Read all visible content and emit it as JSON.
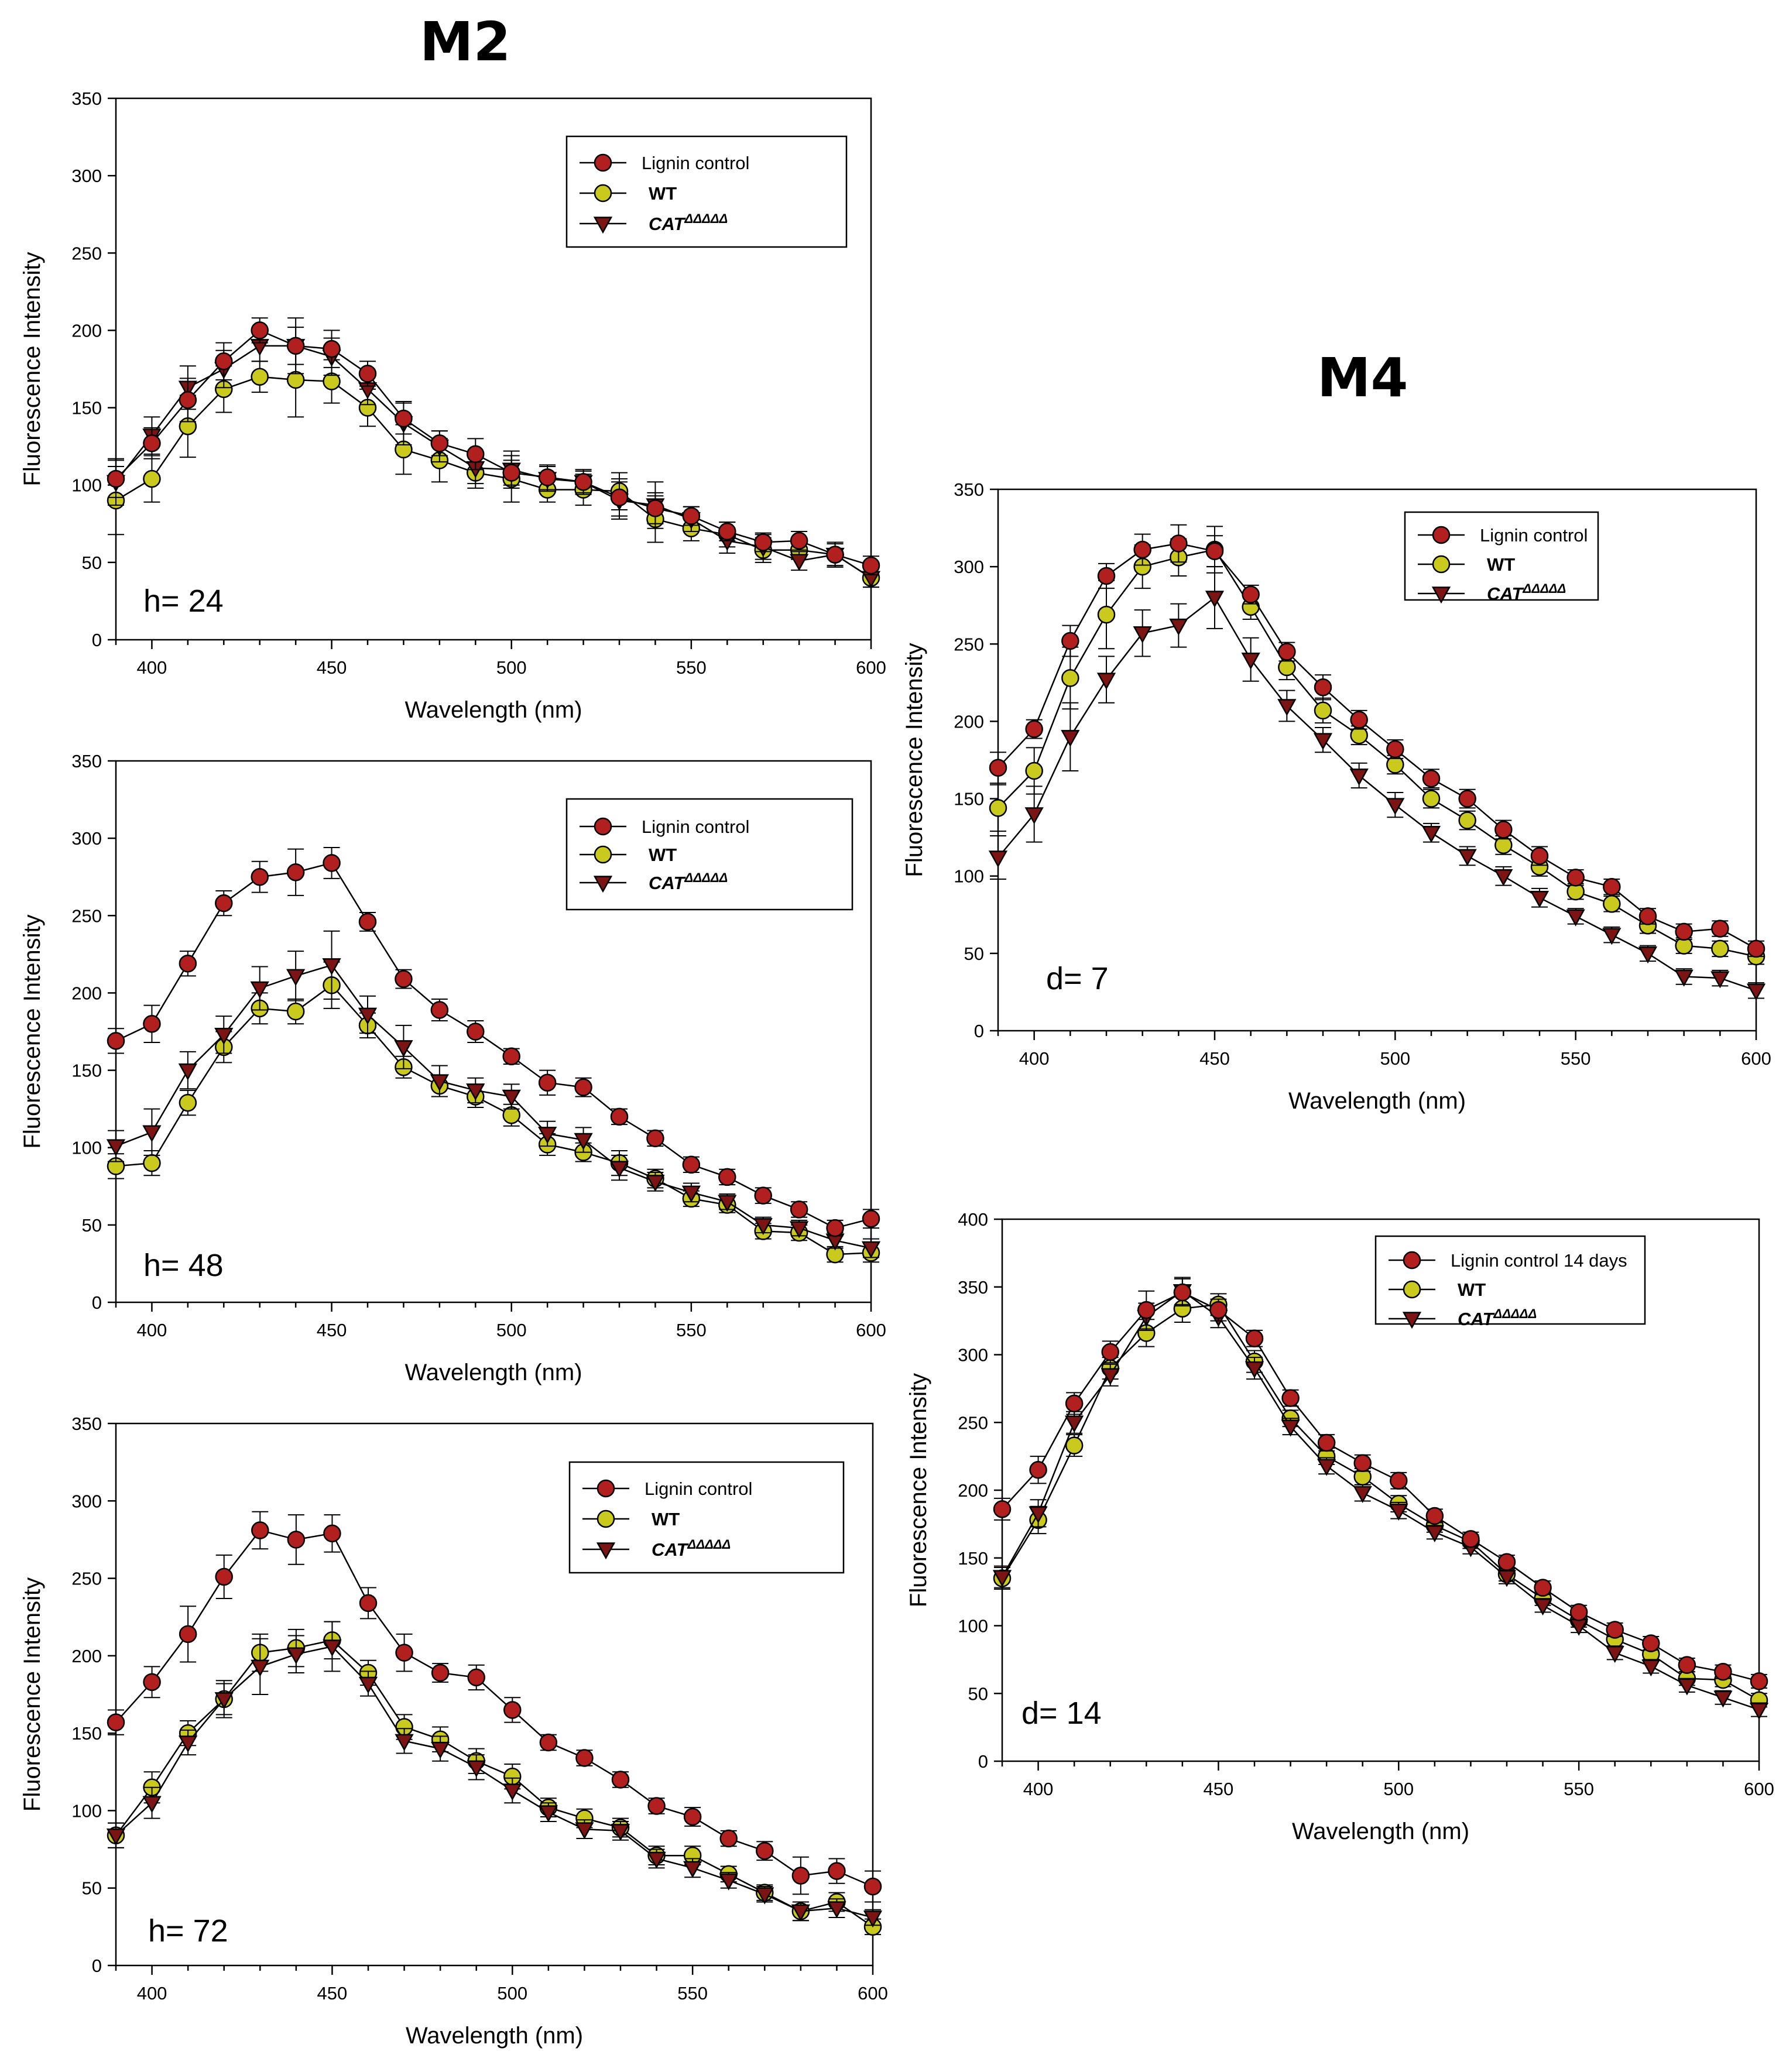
{
  "figure": {
    "titles": {
      "m2": "M2",
      "m4": "M4"
    }
  },
  "colors": {
    "lignin": "#b21f1f",
    "wt": "#c9c91e",
    "cat": "#7d1414",
    "line": "#000000"
  },
  "icons": {
    "lignin": "filled-circle-marker",
    "wt": "filled-circle-marker",
    "cat": "down-triangle-marker"
  },
  "chart_data": [
    {
      "id": "m2-h24",
      "type": "line",
      "group": "M2",
      "annotation": "h= 24",
      "xlabel": "Wavelength (nm)",
      "ylabel": "Fluorescence Intensity",
      "xlim": [
        390,
        600
      ],
      "ylim": [
        0,
        350
      ],
      "xticks": [
        400,
        450,
        500,
        550,
        600
      ],
      "yticks": [
        0,
        50,
        100,
        150,
        200,
        250,
        300,
        350
      ],
      "x": [
        390,
        400,
        410,
        420,
        430,
        440,
        450,
        460,
        470,
        480,
        490,
        500,
        510,
        520,
        530,
        540,
        550,
        560,
        570,
        580,
        590,
        600
      ],
      "series": [
        {
          "name": "Lignin control",
          "key": "lignin",
          "values": [
            104,
            127,
            155,
            180,
            200,
            190,
            188,
            172,
            143,
            127,
            120,
            108,
            105,
            102,
            92,
            85,
            80,
            70,
            63,
            64,
            55,
            48
          ],
          "errors": [
            12,
            10,
            14,
            12,
            8,
            12,
            12,
            8,
            10,
            8,
            10,
            8,
            8,
            7,
            12,
            10,
            6,
            6,
            6,
            6,
            7,
            6
          ]
        },
        {
          "name": "WT",
          "key": "wt",
          "values": [
            90,
            104,
            138,
            162,
            170,
            168,
            167,
            150,
            123,
            116,
            108,
            104,
            97,
            97,
            96,
            78,
            72,
            68,
            58,
            58,
            55,
            40
          ],
          "errors": [
            22,
            15,
            20,
            15,
            10,
            24,
            14,
            12,
            16,
            14,
            10,
            15,
            8,
            10,
            12,
            15,
            8,
            8,
            8,
            6,
            8,
            6
          ]
        },
        {
          "name": "CATΔΔΔΔΔ",
          "key": "cat",
          "values": [
            102,
            132,
            163,
            175,
            190,
            190,
            183,
            162,
            140,
            125,
            111,
            110,
            104,
            102,
            90,
            87,
            78,
            64,
            60,
            51,
            55,
            40
          ],
          "errors": [
            15,
            12,
            14,
            12,
            10,
            18,
            12,
            10,
            14,
            10,
            10,
            12,
            8,
            8,
            12,
            15,
            8,
            8,
            8,
            6,
            8,
            6
          ]
        }
      ]
    },
    {
      "id": "m2-h48",
      "type": "line",
      "group": "M2",
      "annotation": "h= 48",
      "xlabel": "Wavelength (nm)",
      "ylabel": "Fluorescence Intensity",
      "xlim": [
        390,
        600
      ],
      "ylim": [
        0,
        350
      ],
      "xticks": [
        400,
        450,
        500,
        550,
        600
      ],
      "yticks": [
        0,
        50,
        100,
        150,
        200,
        250,
        300,
        350
      ],
      "x": [
        390,
        400,
        410,
        420,
        430,
        440,
        450,
        460,
        470,
        480,
        490,
        500,
        510,
        520,
        530,
        540,
        550,
        560,
        570,
        580,
        590,
        600
      ],
      "series": [
        {
          "name": "Lignin control",
          "key": "lignin",
          "values": [
            169,
            180,
            219,
            258,
            275,
            278,
            284,
            246,
            209,
            189,
            175,
            159,
            142,
            139,
            120,
            106,
            89,
            81,
            69,
            60,
            48,
            54
          ],
          "errors": [
            8,
            12,
            8,
            8,
            10,
            15,
            10,
            6,
            6,
            7,
            7,
            5,
            8,
            6,
            5,
            5,
            5,
            5,
            5,
            5,
            5,
            6
          ]
        },
        {
          "name": "WT",
          "key": "wt",
          "values": [
            88,
            90,
            129,
            165,
            190,
            188,
            205,
            179,
            152,
            140,
            133,
            121,
            102,
            97,
            90,
            80,
            67,
            63,
            46,
            45,
            31,
            32
          ],
          "errors": [
            8,
            8,
            8,
            10,
            10,
            8,
            15,
            8,
            7,
            7,
            7,
            7,
            7,
            6,
            8,
            6,
            5,
            5,
            5,
            5,
            5,
            6
          ]
        },
        {
          "name": "CATΔΔΔΔΔ",
          "key": "cat",
          "values": [
            101,
            110,
            150,
            173,
            203,
            211,
            218,
            186,
            165,
            143,
            137,
            133,
            109,
            105,
            87,
            78,
            71,
            65,
            50,
            48,
            40,
            35
          ],
          "errors": [
            10,
            15,
            12,
            12,
            14,
            16,
            22,
            12,
            14,
            10,
            8,
            8,
            8,
            8,
            8,
            6,
            6,
            5,
            5,
            5,
            5,
            6
          ]
        }
      ]
    },
    {
      "id": "m2-h72",
      "type": "line",
      "group": "M2",
      "annotation": "h= 72",
      "xlabel": "Wavelength (nm)",
      "ylabel": "Fluorescence Intensity",
      "xlim": [
        390,
        600
      ],
      "ylim": [
        0,
        350
      ],
      "xticks": [
        400,
        450,
        500,
        550,
        600
      ],
      "yticks": [
        0,
        50,
        100,
        150,
        200,
        250,
        300,
        350
      ],
      "x": [
        390,
        400,
        410,
        420,
        430,
        440,
        450,
        460,
        470,
        480,
        490,
        500,
        510,
        520,
        530,
        540,
        550,
        560,
        570,
        580,
        590,
        600
      ],
      "series": [
        {
          "name": "Lignin control",
          "key": "lignin",
          "values": [
            157,
            183,
            214,
            251,
            281,
            275,
            279,
            234,
            202,
            189,
            186,
            165,
            144,
            134,
            120,
            103,
            96,
            82,
            74,
            58,
            61,
            51
          ],
          "errors": [
            8,
            10,
            18,
            14,
            12,
            16,
            12,
            10,
            12,
            6,
            8,
            8,
            5,
            5,
            5,
            5,
            6,
            5,
            6,
            12,
            8,
            10
          ]
        },
        {
          "name": "WT",
          "key": "wt",
          "values": [
            84,
            115,
            150,
            172,
            202,
            205,
            210,
            189,
            154,
            146,
            132,
            122,
            102,
            95,
            89,
            71,
            71,
            59,
            47,
            35,
            41,
            25
          ],
          "errors": [
            8,
            10,
            8,
            10,
            12,
            12,
            12,
            8,
            8,
            8,
            8,
            8,
            6,
            6,
            6,
            6,
            6,
            5,
            5,
            6,
            6,
            5
          ]
        },
        {
          "name": "CATΔΔΔΔΔ",
          "key": "cat",
          "values": [
            84,
            105,
            144,
            172,
            193,
            201,
            206,
            182,
            145,
            140,
            128,
            113,
            99,
            88,
            87,
            69,
            63,
            55,
            46,
            35,
            37,
            31
          ],
          "errors": [
            8,
            10,
            8,
            12,
            18,
            12,
            16,
            8,
            8,
            8,
            8,
            8,
            6,
            6,
            6,
            6,
            6,
            5,
            5,
            6,
            6,
            5
          ]
        }
      ]
    },
    {
      "id": "m4-d7",
      "type": "line",
      "group": "M4",
      "annotation": "d= 7",
      "xlabel": "Wavelength (nm)",
      "ylabel": "Fluorescence Intensity",
      "xlim": [
        390,
        600
      ],
      "ylim": [
        0,
        350
      ],
      "xticks": [
        400,
        450,
        500,
        550,
        600
      ],
      "yticks": [
        0,
        50,
        100,
        150,
        200,
        250,
        300,
        350
      ],
      "x": [
        390,
        400,
        410,
        420,
        430,
        440,
        450,
        460,
        470,
        480,
        490,
        500,
        510,
        520,
        530,
        540,
        550,
        560,
        570,
        580,
        590,
        600
      ],
      "series": [
        {
          "name": "Lignin control",
          "key": "lignin",
          "values": [
            170,
            195,
            252,
            294,
            311,
            315,
            310,
            282,
            245,
            222,
            201,
            182,
            163,
            150,
            130,
            113,
            99,
            93,
            74,
            64,
            66,
            53
          ],
          "errors": [
            10,
            6,
            10,
            8,
            10,
            12,
            10,
            6,
            6,
            8,
            6,
            6,
            6,
            6,
            6,
            6,
            5,
            5,
            5,
            5,
            5,
            5
          ]
        },
        {
          "name": "WT",
          "key": "wt",
          "values": [
            144,
            168,
            228,
            269,
            300,
            306,
            311,
            274,
            235,
            207,
            191,
            172,
            150,
            136,
            120,
            106,
            90,
            82,
            68,
            55,
            53,
            48
          ],
          "errors": [
            15,
            15,
            20,
            22,
            14,
            12,
            15,
            8,
            8,
            8,
            6,
            6,
            6,
            6,
            6,
            6,
            5,
            5,
            5,
            5,
            5,
            5
          ]
        },
        {
          "name": "CATΔΔΔΔΔ",
          "key": "cat",
          "values": [
            112,
            140,
            190,
            227,
            257,
            262,
            280,
            240,
            210,
            188,
            165,
            146,
            128,
            113,
            100,
            86,
            74,
            62,
            50,
            35,
            34,
            26
          ],
          "errors": [
            14,
            18,
            22,
            15,
            15,
            14,
            20,
            14,
            10,
            8,
            8,
            8,
            6,
            6,
            6,
            6,
            5,
            5,
            5,
            5,
            5,
            5
          ]
        }
      ]
    },
    {
      "id": "m4-d14",
      "type": "line",
      "group": "M4",
      "annotation": "d= 14",
      "xlabel": "Wavelength (nm)",
      "ylabel": "Fluorescence Intensity",
      "xlim": [
        390,
        600
      ],
      "ylim": [
        0,
        400
      ],
      "xticks": [
        400,
        450,
        500,
        550,
        600
      ],
      "yticks": [
        0,
        50,
        100,
        150,
        200,
        250,
        300,
        350,
        400
      ],
      "x": [
        390,
        400,
        410,
        420,
        430,
        440,
        450,
        460,
        470,
        480,
        490,
        500,
        510,
        520,
        530,
        540,
        550,
        560,
        570,
        580,
        590,
        600
      ],
      "series": [
        {
          "name": "Lignin control 14 days",
          "key": "lignin",
          "values": [
            186,
            215,
            264,
            302,
            333,
            346,
            333,
            312,
            268,
            235,
            220,
            207,
            181,
            164,
            147,
            128,
            110,
            97,
            87,
            71,
            66,
            59
          ],
          "errors": [
            8,
            10,
            8,
            8,
            14,
            10,
            8,
            6,
            6,
            6,
            6,
            6,
            5,
            5,
            5,
            5,
            5,
            5,
            5,
            5,
            5,
            5
          ]
        },
        {
          "name": "WT",
          "key": "wt",
          "values": [
            135,
            178,
            233,
            290,
            316,
            334,
            337,
            295,
            253,
            225,
            210,
            190,
            174,
            162,
            138,
            120,
            104,
            90,
            79,
            61,
            60,
            45
          ],
          "errors": [
            8,
            10,
            8,
            8,
            10,
            10,
            8,
            8,
            6,
            6,
            6,
            6,
            5,
            5,
            5,
            5,
            5,
            5,
            5,
            5,
            5,
            5
          ]
        },
        {
          "name": "CATΔΔΔΔΔ",
          "key": "cat",
          "values": [
            136,
            183,
            250,
            285,
            328,
            347,
            328,
            290,
            247,
            218,
            198,
            185,
            169,
            158,
            136,
            115,
            100,
            80,
            70,
            56,
            47,
            38
          ],
          "errors": [
            8,
            10,
            8,
            8,
            10,
            10,
            8,
            8,
            6,
            6,
            6,
            6,
            5,
            5,
            5,
            5,
            5,
            5,
            5,
            5,
            5,
            5
          ]
        }
      ]
    }
  ]
}
